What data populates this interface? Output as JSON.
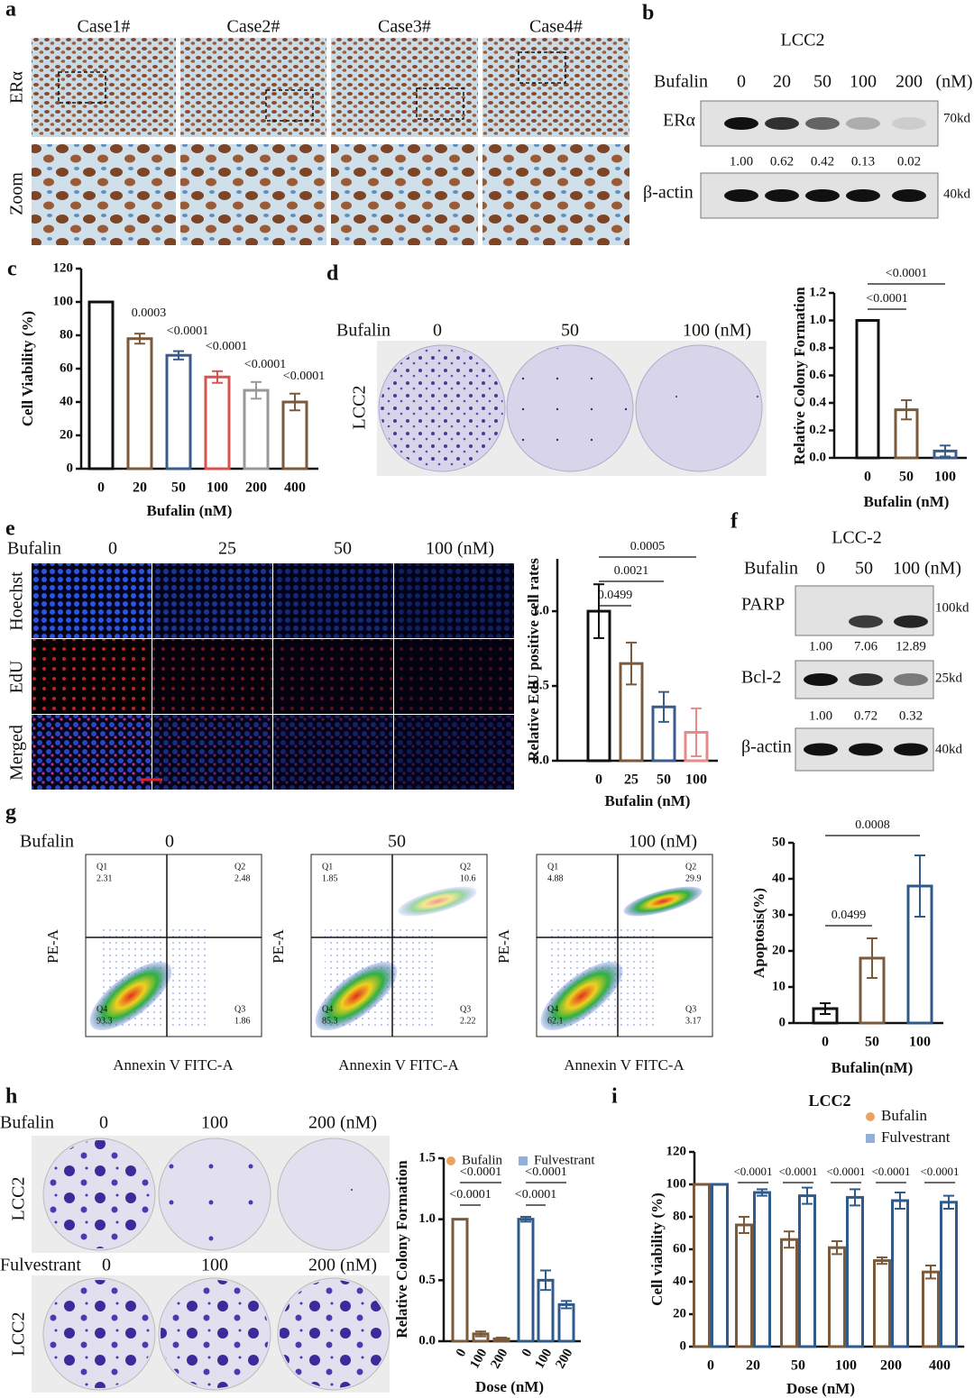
{
  "panels": {
    "a": {
      "letter": "a",
      "cases": [
        "Case1#",
        "Case2#",
        "Case3#",
        "Case4#"
      ],
      "rows": [
        "ERα",
        "Zoom"
      ]
    },
    "b": {
      "letter": "b",
      "cell_line": "LCC2",
      "treatment": "Bufalin",
      "doses": [
        "0",
        "20",
        "50",
        "100",
        "200"
      ],
      "unit": "(nM)",
      "blots": [
        {
          "label": "ERα",
          "size": "70kd",
          "quant": [
            "1.00",
            "0.62",
            "0.42",
            "0.13",
            "0.02"
          ]
        },
        {
          "label": "β-actin",
          "size": "40kd"
        }
      ]
    },
    "c": {
      "letter": "c"
    },
    "d": {
      "letter": "d",
      "treatment": "Bufalin",
      "doses": [
        "0",
        "50",
        "100 (nM)"
      ],
      "cell_line": "LCC2"
    },
    "e": {
      "letter": "e",
      "treatment": "Bufalin",
      "doses": [
        "0",
        "25",
        "50",
        "100 (nM)"
      ],
      "rows": [
        "Hoechst",
        "EdU",
        "Merged"
      ]
    },
    "f": {
      "letter": "f",
      "cell_line": "LCC-2",
      "treatment": "Bufalin",
      "doses": [
        "0",
        "50",
        "100 (nM)"
      ],
      "blots": [
        {
          "label": "PARP",
          "size": "100kd",
          "quant": [
            "1.00",
            "7.06",
            "12.89"
          ]
        },
        {
          "label": "Bcl-2",
          "size": "25kd",
          "quant": [
            "1.00",
            "0.72",
            "0.32"
          ]
        },
        {
          "label": "β-actin",
          "size": "40kd"
        }
      ]
    },
    "g": {
      "letter": "g",
      "treatment": "Bufalin",
      "doses": [
        "0",
        "50",
        "100 (nM)"
      ],
      "x_label": "Annexin V FITC-A",
      "y_label": "PE-A",
      "plots": [
        {
          "quadrants": [
            {
              "name": "Q1",
              "value": "2.31"
            },
            {
              "name": "Q2",
              "value": "2.48"
            },
            {
              "name": "Q4",
              "value": "93.3"
            },
            {
              "name": "Q3",
              "value": "1.86"
            }
          ]
        },
        {
          "quadrants": [
            {
              "name": "Q1",
              "value": "1.85"
            },
            {
              "name": "Q2",
              "value": "10.6"
            },
            {
              "name": "Q4",
              "value": "85.3"
            },
            {
              "name": "Q3",
              "value": "2.22"
            }
          ]
        },
        {
          "quadrants": [
            {
              "name": "Q1",
              "value": "4.88"
            },
            {
              "name": "Q2",
              "value": "29.9"
            },
            {
              "name": "Q4",
              "value": "62.1"
            },
            {
              "name": "Q3",
              "value": "3.17"
            }
          ]
        }
      ]
    },
    "h": {
      "letter": "h",
      "rows": [
        {
          "treatment": "Bufalin",
          "doses": [
            "0",
            "100",
            "200 (nM)"
          ],
          "cell_line": "LCC2"
        },
        {
          "treatment": "Fulvestrant",
          "doses": [
            "0",
            "100",
            "200 (nM)"
          ],
          "cell_line": "LCC2"
        }
      ]
    },
    "i": {
      "letter": "i"
    }
  },
  "chart_data": [
    {
      "type": "bar",
      "y_label": "Cell Viability (%)",
      "x_label": "Bufalin (nM)",
      "categories": [
        "0",
        "20",
        "50",
        "100",
        "200",
        "400"
      ],
      "values": [
        100,
        78,
        68,
        55,
        47,
        40
      ],
      "errors": [
        0,
        3,
        2.5,
        3.5,
        5,
        5
      ],
      "colors": [
        "#111111",
        "#7b5a3c",
        "#3b5b8a",
        "#d9534f",
        "#999999",
        "#7b5a3c"
      ],
      "ylim": [
        0,
        120
      ],
      "yticks": [
        0,
        20,
        40,
        60,
        80,
        100,
        120
      ],
      "annotations": [
        "0.0003",
        "<0.0001",
        "<0.0001",
        "<0.0001",
        "<0.0001"
      ]
    },
    {
      "type": "bar",
      "y_label": "Relative Colony Formation",
      "x_label": "Bufalin (nM)",
      "categories": [
        "0",
        "50",
        "100"
      ],
      "values": [
        1.0,
        0.35,
        0.05
      ],
      "errors": [
        0,
        0.07,
        0.04
      ],
      "colors": [
        "#111111",
        "#7b5a3c",
        "#3b5b8a"
      ],
      "ylim": [
        0,
        1.2
      ],
      "yticks": [
        {
          "value": 0,
          "label": "0.0"
        },
        0.2,
        0.4,
        0.6,
        0.8,
        {
          "value": 1,
          "label": "1.0"
        },
        1.2
      ],
      "annotations": [
        "<0.0001",
        "<0.0001"
      ]
    },
    {
      "type": "bar",
      "y_label": "Relative EdU positive cell rates",
      "x_label": "Bufalin (nM)",
      "categories": [
        "0",
        "25",
        "50",
        "100"
      ],
      "values": [
        1.0,
        0.65,
        0.36,
        0.19
      ],
      "errors": [
        0.18,
        0.14,
        0.1,
        0.16
      ],
      "colors": [
        "#111111",
        "#7b5a3c",
        "#3b5b8a",
        "#e88a8a"
      ],
      "ylim": [
        0,
        1.35
      ],
      "yticks": [
        {
          "value": 0,
          "label": "0.0"
        },
        0.5,
        {
          "value": 1,
          "label": "1.0"
        }
      ],
      "annotations": [
        "0.0499",
        "0.0021",
        "0.0005"
      ]
    },
    {
      "type": "bar",
      "y_label": "Apoptosis(%)",
      "x_label": "Bufalin(nM)",
      "categories": [
        "0",
        "50",
        "100"
      ],
      "values": [
        4,
        18,
        38
      ],
      "errors": [
        1.5,
        5.5,
        8.5
      ],
      "colors": [
        "#111111",
        "#7b5a3c",
        "#2f5b8c"
      ],
      "ylim": [
        0,
        50
      ],
      "yticks": [
        0,
        10,
        20,
        30,
        40,
        50
      ],
      "annotations": [
        "0.0499",
        "0.0008"
      ]
    },
    {
      "type": "bar",
      "y_label": "Relative Colony Formation",
      "x_label": "Dose (nM)",
      "categories": [
        "0",
        "100",
        "200",
        "0",
        "100",
        "200"
      ],
      "series": [
        {
          "name": "Bufalin",
          "color": "#7b5a3c",
          "marker_color": "#e9a55f",
          "values": [
            1.0,
            0.06,
            0.02,
            null,
            null,
            null
          ],
          "errors": [
            0,
            0.02,
            0.01,
            null,
            null,
            null
          ]
        },
        {
          "name": "Fulvestrant",
          "color": "#2f5b8c",
          "marker_color": "#8fb0d8",
          "values": [
            null,
            null,
            null,
            1.0,
            0.5,
            0.3
          ],
          "errors": [
            null,
            null,
            null,
            0.02,
            0.08,
            0.03
          ]
        }
      ],
      "ylim": [
        0,
        1.5
      ],
      "yticks": [
        {
          "value": 0,
          "label": "0.0"
        },
        0.5,
        {
          "value": 1,
          "label": "1.0"
        },
        1.5
      ],
      "annotations": [
        "<0.0001",
        "<0.0001",
        "<0.0001",
        "<0.0001"
      ]
    },
    {
      "type": "bar",
      "title": "LCC2",
      "y_label": "Cell viability (%)",
      "x_label": "Dose (nM)",
      "categories": [
        "0",
        "20",
        "50",
        "100",
        "200",
        "400"
      ],
      "series": [
        {
          "name": "Bufalin",
          "color": "#7b5a3c",
          "marker_color": "#e9a55f",
          "values": [
            100,
            75,
            66,
            61,
            53,
            46
          ],
          "errors": [
            0,
            5,
            5,
            4,
            2,
            4
          ]
        },
        {
          "name": "Fulvestrant",
          "color": "#2f5b8c",
          "marker_color": "#8fb0d8",
          "values": [
            100,
            95,
            93,
            92,
            90,
            89
          ],
          "errors": [
            0,
            2,
            5,
            5,
            5,
            4
          ]
        }
      ],
      "ylim": [
        0,
        120
      ],
      "yticks": [
        0,
        20,
        40,
        60,
        80,
        100,
        120
      ],
      "annotations": [
        "<0.0001",
        "<0.0001",
        "<0.0001",
        "<0.0001",
        "<0.0001"
      ]
    }
  ]
}
